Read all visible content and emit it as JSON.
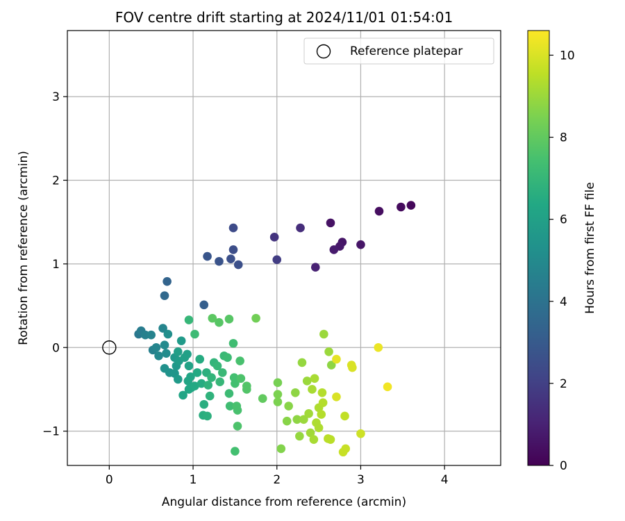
{
  "chart_data": {
    "type": "scatter",
    "title": "FOV centre drift starting at 2024/11/01 01:54:01",
    "xlabel": "Angular distance from reference (arcmin)",
    "ylabel": "Rotation from reference (arcmin)",
    "xlim": [
      -0.5,
      4.67
    ],
    "ylim": [
      -1.41,
      3.79
    ],
    "xticks": [
      0,
      1,
      2,
      3,
      4
    ],
    "yticks": [
      -1,
      0,
      1,
      2,
      3
    ],
    "xtick_labels": [
      "0",
      "1",
      "2",
      "3",
      "4"
    ],
    "ytick_labels": [
      "−1",
      "0",
      "1",
      "2",
      "3"
    ],
    "grid": true,
    "legend": {
      "position": "top-right",
      "entries": [
        "Reference platepar"
      ]
    },
    "reference_point": {
      "x": 0,
      "y": 0,
      "label": "Reference platepar"
    },
    "colorbar": {
      "label": "Hours from first FF file",
      "range": [
        0,
        10.6
      ],
      "ticks": [
        0,
        2,
        4,
        6,
        8,
        10
      ],
      "tick_labels": [
        "0",
        "2",
        "4",
        "6",
        "8",
        "10"
      ],
      "colormap": "viridis"
    },
    "points": [
      {
        "x": 3.6,
        "y": 1.7,
        "c": 0.2
      },
      {
        "x": 3.48,
        "y": 1.68,
        "c": 0.3
      },
      {
        "x": 3.22,
        "y": 1.63,
        "c": 0.4
      },
      {
        "x": 2.64,
        "y": 1.49,
        "c": 0.5
      },
      {
        "x": 2.78,
        "y": 1.26,
        "c": 0.6
      },
      {
        "x": 2.75,
        "y": 1.21,
        "c": 0.7
      },
      {
        "x": 3.0,
        "y": 1.23,
        "c": 0.6
      },
      {
        "x": 2.68,
        "y": 1.17,
        "c": 0.8
      },
      {
        "x": 2.46,
        "y": 0.96,
        "c": 1.0
      },
      {
        "x": 2.28,
        "y": 1.43,
        "c": 1.4
      },
      {
        "x": 1.97,
        "y": 1.32,
        "c": 1.6
      },
      {
        "x": 2.0,
        "y": 1.05,
        "c": 1.9
      },
      {
        "x": 1.48,
        "y": 1.43,
        "c": 2.4
      },
      {
        "x": 1.48,
        "y": 1.17,
        "c": 2.5
      },
      {
        "x": 1.45,
        "y": 1.06,
        "c": 2.6
      },
      {
        "x": 1.54,
        "y": 0.99,
        "c": 2.6
      },
      {
        "x": 1.31,
        "y": 1.03,
        "c": 2.7
      },
      {
        "x": 1.17,
        "y": 1.09,
        "c": 2.8
      },
      {
        "x": 1.13,
        "y": 0.51,
        "c": 3.2
      },
      {
        "x": 0.69,
        "y": 0.79,
        "c": 3.4
      },
      {
        "x": 0.66,
        "y": 0.62,
        "c": 3.6
      },
      {
        "x": 0.35,
        "y": 0.16,
        "c": 4.2
      },
      {
        "x": 0.38,
        "y": 0.2,
        "c": 4.4
      },
      {
        "x": 0.43,
        "y": 0.15,
        "c": 4.6
      },
      {
        "x": 0.5,
        "y": 0.15,
        "c": 4.7
      },
      {
        "x": 0.52,
        "y": -0.03,
        "c": 4.6
      },
      {
        "x": 0.56,
        "y": 0.0,
        "c": 4.8
      },
      {
        "x": 0.59,
        "y": -0.1,
        "c": 4.9
      },
      {
        "x": 0.64,
        "y": 0.23,
        "c": 4.8
      },
      {
        "x": 0.66,
        "y": 0.03,
        "c": 5.0
      },
      {
        "x": 0.68,
        "y": -0.07,
        "c": 5.1
      },
      {
        "x": 0.7,
        "y": 0.16,
        "c": 5.2
      },
      {
        "x": 0.66,
        "y": -0.25,
        "c": 5.3
      },
      {
        "x": 0.72,
        "y": -0.3,
        "c": 5.4
      },
      {
        "x": 0.78,
        "y": -0.31,
        "c": 5.5
      },
      {
        "x": 0.8,
        "y": -0.22,
        "c": 5.6
      },
      {
        "x": 0.82,
        "y": -0.38,
        "c": 5.7
      },
      {
        "x": 0.78,
        "y": -0.12,
        "c": 5.6
      },
      {
        "x": 0.83,
        "y": -0.16,
        "c": 5.8
      },
      {
        "x": 0.86,
        "y": 0.08,
        "c": 5.7
      },
      {
        "x": 0.82,
        "y": -0.05,
        "c": 5.9
      },
      {
        "x": 0.9,
        "y": -0.12,
        "c": 6.0
      },
      {
        "x": 0.93,
        "y": -0.08,
        "c": 6.0
      },
      {
        "x": 0.95,
        "y": -0.22,
        "c": 6.1
      },
      {
        "x": 0.97,
        "y": -0.35,
        "c": 6.2
      },
      {
        "x": 0.94,
        "y": -0.4,
        "c": 6.2
      },
      {
        "x": 0.98,
        "y": -0.48,
        "c": 6.3
      },
      {
        "x": 0.95,
        "y": -0.5,
        "c": 6.3
      },
      {
        "x": 0.88,
        "y": -0.57,
        "c": 6.2
      },
      {
        "x": 1.02,
        "y": -0.46,
        "c": 6.4
      },
      {
        "x": 1.05,
        "y": -0.3,
        "c": 6.4
      },
      {
        "x": 1.08,
        "y": -0.14,
        "c": 6.5
      },
      {
        "x": 1.1,
        "y": -0.43,
        "c": 6.5
      },
      {
        "x": 1.13,
        "y": -0.68,
        "c": 6.6
      },
      {
        "x": 1.12,
        "y": -0.81,
        "c": 6.6
      },
      {
        "x": 1.17,
        "y": -0.82,
        "c": 6.7
      },
      {
        "x": 1.16,
        "y": -0.3,
        "c": 6.7
      },
      {
        "x": 1.18,
        "y": -0.45,
        "c": 6.8
      },
      {
        "x": 1.2,
        "y": -0.58,
        "c": 6.8
      },
      {
        "x": 1.22,
        "y": -0.36,
        "c": 6.9
      },
      {
        "x": 1.25,
        "y": -0.18,
        "c": 6.9
      },
      {
        "x": 1.29,
        "y": -0.22,
        "c": 7.0
      },
      {
        "x": 1.32,
        "y": -0.41,
        "c": 7.0
      },
      {
        "x": 1.35,
        "y": -0.3,
        "c": 7.1
      },
      {
        "x": 1.37,
        "y": -0.1,
        "c": 7.1
      },
      {
        "x": 1.41,
        "y": -0.12,
        "c": 7.2
      },
      {
        "x": 1.43,
        "y": -0.55,
        "c": 7.2
      },
      {
        "x": 1.44,
        "y": -0.7,
        "c": 7.3
      },
      {
        "x": 1.48,
        "y": 0.05,
        "c": 7.3
      },
      {
        "x": 1.49,
        "y": -0.36,
        "c": 7.4
      },
      {
        "x": 1.5,
        "y": -0.43,
        "c": 7.4
      },
      {
        "x": 1.52,
        "y": -0.7,
        "c": 7.5
      },
      {
        "x": 1.53,
        "y": -0.75,
        "c": 7.5
      },
      {
        "x": 1.53,
        "y": -0.94,
        "c": 7.6
      },
      {
        "x": 1.5,
        "y": -1.24,
        "c": 7.4
      },
      {
        "x": 1.56,
        "y": -0.16,
        "c": 7.5
      },
      {
        "x": 1.57,
        "y": -0.37,
        "c": 7.6
      },
      {
        "x": 1.64,
        "y": -0.46,
        "c": 7.7
      },
      {
        "x": 1.64,
        "y": -0.5,
        "c": 7.7
      },
      {
        "x": 1.43,
        "y": 0.34,
        "c": 7.8
      },
      {
        "x": 1.31,
        "y": 0.3,
        "c": 7.8
      },
      {
        "x": 1.23,
        "y": 0.35,
        "c": 7.9
      },
      {
        "x": 0.95,
        "y": 0.33,
        "c": 7.0
      },
      {
        "x": 1.02,
        "y": 0.16,
        "c": 7.2
      },
      {
        "x": 1.75,
        "y": 0.35,
        "c": 8.3
      },
      {
        "x": 1.83,
        "y": -0.61,
        "c": 8.0
      },
      {
        "x": 2.01,
        "y": -0.42,
        "c": 8.4
      },
      {
        "x": 2.01,
        "y": -0.56,
        "c": 8.5
      },
      {
        "x": 2.01,
        "y": -0.65,
        "c": 8.5
      },
      {
        "x": 2.05,
        "y": -1.21,
        "c": 8.6
      },
      {
        "x": 2.12,
        "y": -0.88,
        "c": 8.7
      },
      {
        "x": 2.14,
        "y": -0.7,
        "c": 8.7
      },
      {
        "x": 2.22,
        "y": -0.54,
        "c": 8.8
      },
      {
        "x": 2.24,
        "y": -0.86,
        "c": 8.8
      },
      {
        "x": 2.27,
        "y": -1.06,
        "c": 8.9
      },
      {
        "x": 2.3,
        "y": -0.18,
        "c": 8.9
      },
      {
        "x": 2.32,
        "y": -0.86,
        "c": 9.0
      },
      {
        "x": 2.36,
        "y": -0.4,
        "c": 9.0
      },
      {
        "x": 2.38,
        "y": -0.79,
        "c": 9.1
      },
      {
        "x": 2.4,
        "y": -1.02,
        "c": 9.1
      },
      {
        "x": 2.42,
        "y": -0.5,
        "c": 9.2
      },
      {
        "x": 2.44,
        "y": -1.1,
        "c": 9.2
      },
      {
        "x": 2.45,
        "y": -0.37,
        "c": 9.2
      },
      {
        "x": 2.47,
        "y": -0.9,
        "c": 9.3
      },
      {
        "x": 2.5,
        "y": -0.72,
        "c": 9.3
      },
      {
        "x": 2.5,
        "y": -0.96,
        "c": 9.3
      },
      {
        "x": 2.53,
        "y": -0.8,
        "c": 9.4
      },
      {
        "x": 2.54,
        "y": -0.54,
        "c": 9.4
      },
      {
        "x": 2.55,
        "y": -0.66,
        "c": 9.4
      },
      {
        "x": 2.56,
        "y": 0.16,
        "c": 9.0
      },
      {
        "x": 2.61,
        "y": -1.09,
        "c": 9.5
      },
      {
        "x": 2.62,
        "y": -0.05,
        "c": 9.0
      },
      {
        "x": 2.65,
        "y": -0.21,
        "c": 8.8
      },
      {
        "x": 2.64,
        "y": -1.1,
        "c": 9.5
      },
      {
        "x": 2.71,
        "y": -0.59,
        "c": 10.0
      },
      {
        "x": 2.71,
        "y": -0.14,
        "c": 10.2
      },
      {
        "x": 2.79,
        "y": -1.25,
        "c": 9.7
      },
      {
        "x": 2.82,
        "y": -1.21,
        "c": 9.7
      },
      {
        "x": 2.81,
        "y": -0.82,
        "c": 9.6
      },
      {
        "x": 2.89,
        "y": -0.21,
        "c": 10.0
      },
      {
        "x": 2.9,
        "y": -0.24,
        "c": 10.0
      },
      {
        "x": 3.0,
        "y": -1.03,
        "c": 9.8
      },
      {
        "x": 3.21,
        "y": 0.0,
        "c": 10.3
      },
      {
        "x": 3.32,
        "y": -0.47,
        "c": 10.4
      }
    ]
  }
}
